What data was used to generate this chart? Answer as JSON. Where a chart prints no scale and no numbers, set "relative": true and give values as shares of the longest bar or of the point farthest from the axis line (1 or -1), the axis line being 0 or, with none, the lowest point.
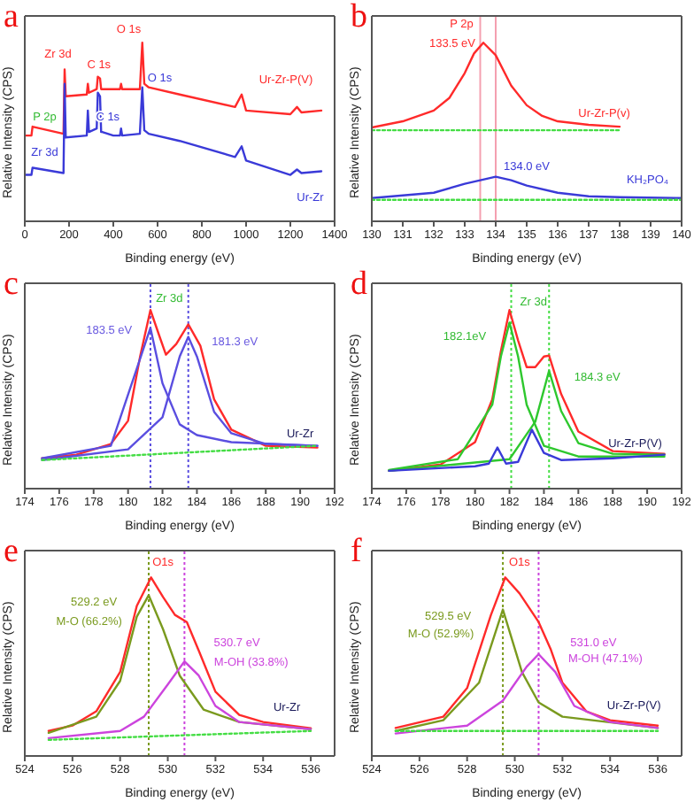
{
  "chart_data": [
    {
      "type": "line",
      "title": "a",
      "xlabel": "Binding energy (eV)",
      "ylabel": "Relative Intensity (CPS)",
      "relative": true,
      "marker": "none",
      "xlim": [
        0,
        1400
      ],
      "xticks": [
        0,
        200,
        400,
        600,
        800,
        1000,
        1200,
        1400
      ],
      "series": [
        {
          "name": "Ur-Zr-P(V)",
          "color": "#ff2a2a",
          "x": [
            0,
            30,
            35,
            175,
            180,
            185,
            280,
            285,
            290,
            325,
            330,
            340,
            345,
            350,
            400,
            430,
            435,
            440,
            520,
            531,
            540,
            560,
            700,
            950,
            980,
            1000,
            1200,
            1230,
            1250,
            1340
          ],
          "values": [
            0.48,
            0.48,
            0.53,
            0.49,
            0.85,
            0.7,
            0.71,
            0.77,
            0.72,
            0.74,
            0.81,
            0.8,
            0.74,
            0.74,
            0.74,
            0.74,
            0.77,
            0.74,
            0.74,
            1,
            0.77,
            0.75,
            0.71,
            0.64,
            0.71,
            0.62,
            0.6,
            0.64,
            0.61,
            0.62
          ]
        },
        {
          "name": "Ur-Zr",
          "color": "#3a3ad8",
          "x": [
            0,
            30,
            35,
            175,
            180,
            185,
            280,
            285,
            290,
            325,
            330,
            340,
            345,
            350,
            400,
            430,
            435,
            440,
            520,
            531,
            540,
            560,
            700,
            950,
            980,
            1000,
            1200,
            1230,
            1250,
            1340
          ],
          "values": [
            0.26,
            0.26,
            0.3,
            0.27,
            0.77,
            0.47,
            0.48,
            0.62,
            0.5,
            0.52,
            0.72,
            0.7,
            0.5,
            0.5,
            0.48,
            0.48,
            0.52,
            0.48,
            0.49,
            0.75,
            0.51,
            0.49,
            0.45,
            0.36,
            0.42,
            0.34,
            0.26,
            0.29,
            0.27,
            0.28
          ]
        }
      ],
      "annotations": [
        "Zr 3d",
        "C 1s",
        "O 1s",
        "P 2p",
        "Zr 3d",
        "C 1s",
        "O 1s"
      ]
    },
    {
      "type": "line",
      "title": "b",
      "xlabel": "Binding energy (eV)",
      "ylabel": "Relative Intensity (CPS)",
      "relative": true,
      "marker": "none",
      "xlim": [
        130,
        140
      ],
      "xticks": [
        130,
        131,
        132,
        133,
        134,
        135,
        136,
        137,
        138,
        139,
        140
      ],
      "series": [
        {
          "color": "#ff2a2a",
          "x": [
            130,
            131,
            132,
            132.5,
            133,
            133.3,
            133.6,
            134,
            134.5,
            135,
            135.5,
            136,
            137,
            138
          ],
          "values": [
            0.525,
            0.56,
            0.62,
            0.69,
            0.83,
            0.94,
            1,
            0.93,
            0.76,
            0.65,
            0.59,
            0.56,
            0.54,
            0.53
          ]
        },
        {
          "color": "#44dd44",
          "line_style": "dotted",
          "x": [
            130,
            138
          ],
          "values": [
            0.51,
            0.51
          ]
        },
        {
          "color": "#3a3ad8",
          "x": [
            130,
            132,
            133,
            133.5,
            134,
            134.5,
            135,
            136,
            137,
            138,
            140
          ],
          "values": [
            0.13,
            0.16,
            0.21,
            0.23,
            0.25,
            0.23,
            0.2,
            0.16,
            0.14,
            0.135,
            0.13
          ]
        },
        {
          "color": "#44dd44",
          "line_style": "dotted",
          "x": [
            130,
            140
          ],
          "values": [
            0.12,
            0.12
          ]
        }
      ],
      "ref_lines": [
        {
          "axis": "x",
          "value": 133.5,
          "color": "#f4a0b0"
        },
        {
          "axis": "x",
          "value": 134.0,
          "color": "#f4a0b0"
        }
      ],
      "annotations": [
        "P 2p",
        "133.5 eV",
        "Ur-Zr-P(v)",
        "134.0 eV",
        "KH₂PO₄"
      ]
    },
    {
      "type": "line",
      "title": "c",
      "xlabel": "Binding energy (eV)",
      "ylabel": "Relative Intensity (CPS)",
      "relative": true,
      "marker": "none",
      "xlim": [
        174,
        192
      ],
      "xticks": [
        174,
        176,
        178,
        180,
        182,
        184,
        186,
        188,
        190,
        192
      ],
      "series": [
        {
          "color": "#ff2a2a",
          "x": [
            175,
            177,
            179,
            180,
            180.7,
            181.3,
            181.8,
            182.2,
            182.8,
            183.5,
            184.2,
            185,
            186,
            188,
            191
          ],
          "values": [
            0.17,
            0.19,
            0.25,
            0.38,
            0.74,
            1,
            0.86,
            0.75,
            0.81,
            0.92,
            0.8,
            0.5,
            0.33,
            0.24,
            0.23
          ]
        },
        {
          "color": "#5a4ee0",
          "x": [
            175,
            179,
            180.5,
            181.3,
            182,
            183,
            184,
            186,
            191
          ],
          "values": [
            0.17,
            0.24,
            0.67,
            0.9,
            0.59,
            0.36,
            0.3,
            0.26,
            0.24
          ]
        },
        {
          "color": "#5a4ee0",
          "x": [
            175,
            180,
            182,
            183,
            183.5,
            184,
            185,
            186,
            188,
            191
          ],
          "values": [
            0.16,
            0.22,
            0.4,
            0.74,
            0.85,
            0.74,
            0.43,
            0.31,
            0.25,
            0.24
          ]
        },
        {
          "color": "#44dd44",
          "line_style": "dotted",
          "x": [
            175,
            191
          ],
          "values": [
            0.16,
            0.24
          ]
        }
      ],
      "ref_lines": [
        {
          "axis": "x",
          "value": 181.3,
          "color": "#5a4ee0",
          "line_style": "dotted"
        },
        {
          "axis": "x",
          "value": 183.5,
          "color": "#5a4ee0",
          "line_style": "dotted"
        }
      ],
      "annotations": [
        "Zr 3d",
        "183.5 eV",
        "181.3 eV",
        "Ur-Zr"
      ]
    },
    {
      "type": "line",
      "title": "d",
      "xlabel": "Binding energy (eV)",
      "ylabel": "Relative Intensity (CPS)",
      "relative": true,
      "marker": "none",
      "xlim": [
        174,
        192
      ],
      "xticks": [
        174,
        176,
        178,
        180,
        182,
        184,
        186,
        188,
        190,
        192
      ],
      "series": [
        {
          "color": "#ff2a2a",
          "x": [
            175,
            178,
            180,
            181,
            181.5,
            182,
            182.5,
            183,
            183.5,
            184,
            184.3,
            185,
            186,
            188,
            191
          ],
          "values": [
            0.1,
            0.135,
            0.26,
            0.5,
            0.77,
            1,
            0.83,
            0.68,
            0.68,
            0.74,
            0.745,
            0.53,
            0.32,
            0.21,
            0.195
          ]
        },
        {
          "color": "#2ec82e",
          "x": [
            175,
            179,
            181,
            181.5,
            182,
            182.5,
            183,
            184,
            186,
            191
          ],
          "values": [
            0.105,
            0.165,
            0.47,
            0.74,
            0.93,
            0.74,
            0.47,
            0.24,
            0.18,
            0.18
          ]
        },
        {
          "color": "#2ec82e",
          "x": [
            175,
            182,
            183.5,
            184.3,
            185,
            186,
            188,
            191
          ],
          "values": [
            0.1,
            0.165,
            0.375,
            0.66,
            0.435,
            0.255,
            0.195,
            0.19
          ]
        },
        {
          "color": "#3a3ad8",
          "x": [
            175,
            180,
            180.8,
            181.3,
            181.8,
            182.5,
            183.3,
            184,
            185,
            188,
            191
          ],
          "values": [
            0.1,
            0.125,
            0.14,
            0.23,
            0.14,
            0.15,
            0.33,
            0.2,
            0.16,
            0.17,
            0.19
          ]
        }
      ],
      "ref_lines": [
        {
          "axis": "x",
          "value": 182.1,
          "color": "#44dd44",
          "line_style": "dotted"
        },
        {
          "axis": "x",
          "value": 184.3,
          "color": "#44dd44",
          "line_style": "dotted"
        }
      ],
      "annotations": [
        "Zr 3d",
        "182.1eV",
        "184.3 eV",
        "Ur-Zr-P(V)"
      ]
    },
    {
      "type": "line",
      "title": "e",
      "xlabel": "Binding energy (eV)",
      "ylabel": "Relative Intensity (CPS)",
      "relative": true,
      "marker": "none",
      "xlim": [
        524,
        537
      ],
      "xticks": [
        524,
        526,
        528,
        530,
        532,
        534,
        536
      ],
      "series": [
        {
          "color": "#ff2a2a",
          "x": [
            525,
            526,
            527,
            528,
            528.7,
            529.3,
            529.8,
            530.3,
            530.8,
            531.3,
            532,
            533,
            534,
            536
          ],
          "values": [
            0.14,
            0.17,
            0.25,
            0.47,
            0.84,
            1,
            0.89,
            0.79,
            0.75,
            0.59,
            0.36,
            0.23,
            0.19,
            0.155
          ]
        },
        {
          "color": "#7a9a1e",
          "x": [
            525,
            527,
            528,
            528.7,
            529.2,
            529.8,
            530.5,
            531.5,
            533,
            536
          ],
          "values": [
            0.13,
            0.22,
            0.42,
            0.78,
            0.9,
            0.71,
            0.45,
            0.26,
            0.19,
            0.15
          ]
        },
        {
          "color": "#cc44dd",
          "x": [
            525,
            528,
            529,
            530,
            530.7,
            531.3,
            532,
            533,
            536
          ],
          "values": [
            0.1,
            0.14,
            0.22,
            0.4,
            0.53,
            0.45,
            0.28,
            0.19,
            0.15
          ]
        },
        {
          "color": "#44dd44",
          "line_style": "dotted",
          "x": [
            525,
            536
          ],
          "values": [
            0.09,
            0.14
          ]
        }
      ],
      "ref_lines": [
        {
          "axis": "x",
          "value": 529.2,
          "color": "#7a9a1e",
          "line_style": "dotted"
        },
        {
          "axis": "x",
          "value": 530.7,
          "color": "#cc44dd",
          "line_style": "dotted"
        }
      ],
      "annotations": [
        "O1s",
        "529.2 eV",
        "M-O (66.2%)",
        "530.7 eV",
        "M-OH (33.8%)",
        "Ur-Zr"
      ]
    },
    {
      "type": "line",
      "title": "f",
      "xlabel": "Binding energy (eV)",
      "ylabel": "Relative Intensity (CPS)",
      "relative": true,
      "marker": "none",
      "xlim": [
        524,
        537
      ],
      "xticks": [
        524,
        526,
        528,
        530,
        532,
        534,
        536
      ],
      "series": [
        {
          "color": "#ff2a2a",
          "x": [
            525,
            527,
            528,
            529,
            529.6,
            530.2,
            531,
            531.5,
            532,
            533,
            534,
            536
          ],
          "values": [
            0.157,
            0.22,
            0.38,
            0.79,
            1,
            0.91,
            0.75,
            0.6,
            0.41,
            0.25,
            0.2,
            0.17
          ]
        },
        {
          "color": "#7a9a1e",
          "x": [
            525,
            527,
            528.5,
            529.5,
            530.3,
            531,
            532,
            536
          ],
          "values": [
            0.14,
            0.2,
            0.41,
            0.82,
            0.47,
            0.3,
            0.22,
            0.157
          ]
        },
        {
          "color": "#cc44dd",
          "x": [
            525,
            528,
            529.5,
            530.5,
            531,
            531.7,
            532.5,
            534,
            536
          ],
          "values": [
            0.126,
            0.17,
            0.31,
            0.5,
            0.57,
            0.47,
            0.28,
            0.19,
            0.157
          ]
        },
        {
          "color": "#44dd44",
          "line_style": "dotted",
          "x": [
            525,
            536
          ],
          "values": [
            0.14,
            0.14
          ]
        }
      ],
      "ref_lines": [
        {
          "axis": "x",
          "value": 529.5,
          "color": "#7a9a1e",
          "line_style": "dotted"
        },
        {
          "axis": "x",
          "value": 531.0,
          "color": "#cc44dd",
          "line_style": "dotted"
        }
      ],
      "annotations": [
        "O1s",
        "529.5 eV",
        "M-O (52.9%)",
        "531.0 eV",
        "M-OH (47.1%)",
        "Ur-Zr-P(V)"
      ]
    }
  ]
}
